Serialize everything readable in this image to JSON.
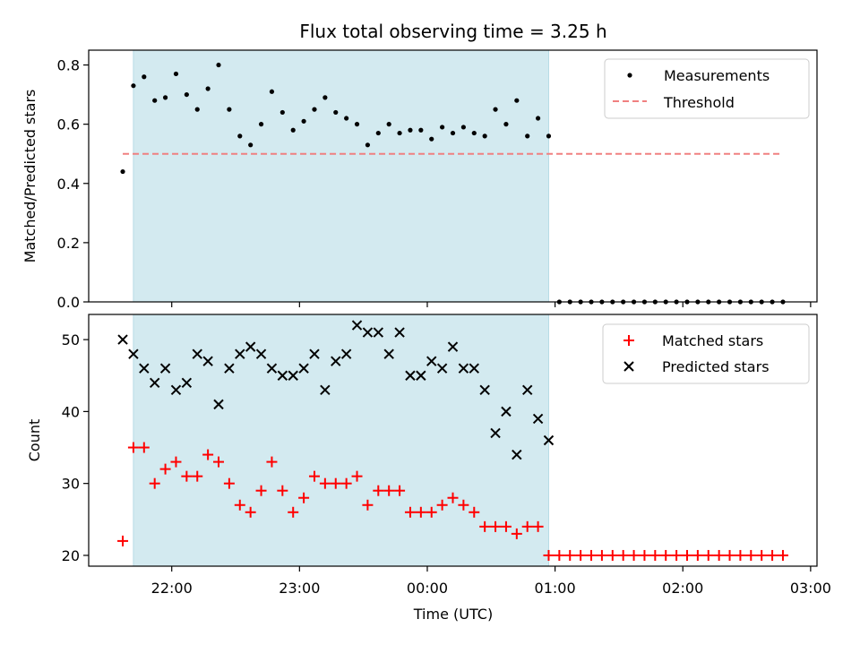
{
  "chart_data": {
    "title": "Flux total observing time = 3.25 h",
    "xlabel": "Time (UTC)",
    "x_ticks": [
      "22:00",
      "23:00",
      "00:00",
      "01:00",
      "02:00",
      "03:00"
    ],
    "x_tick_minutes": [
      0,
      60,
      120,
      180,
      240,
      300
    ],
    "xlim_minutes": [
      -39,
      303
    ],
    "observing_window_minutes": [
      -18,
      177
    ],
    "colors": {
      "window": "#d3eaf0",
      "measurements": "#000000",
      "threshold": "#f08080",
      "matched": "#ff0000",
      "predicted": "#000000"
    },
    "top": {
      "type": "scatter",
      "ylabel": "Matched/Predicted stars",
      "ylim": [
        0,
        0.85
      ],
      "y_ticks": [
        "0.0",
        "0.2",
        "0.4",
        "0.6",
        "0.8"
      ],
      "y_tick_values": [
        0,
        0.2,
        0.4,
        0.6,
        0.8
      ],
      "legend": [
        "Measurements",
        "Threshold"
      ],
      "threshold": {
        "value": 0.5,
        "x_range_minutes": [
          -23,
          287
        ]
      },
      "measurements": {
        "x_minutes": [
          -23,
          -18,
          -13,
          -8,
          -3,
          2,
          7,
          12,
          17,
          22,
          27,
          32,
          37,
          42,
          47,
          52,
          57,
          62,
          67,
          72,
          77,
          82,
          87,
          92,
          97,
          102,
          107,
          112,
          117,
          122,
          127,
          132,
          137,
          142,
          147,
          152,
          157,
          162,
          167,
          172,
          177,
          182,
          187,
          192,
          197,
          202,
          207,
          212,
          217,
          222,
          227,
          232,
          237,
          242,
          247,
          252,
          257,
          262,
          267,
          272,
          277,
          282,
          287
        ],
        "y": [
          0.44,
          0.73,
          0.76,
          0.68,
          0.69,
          0.77,
          0.7,
          0.65,
          0.72,
          0.8,
          0.65,
          0.56,
          0.53,
          0.6,
          0.71,
          0.64,
          0.58,
          0.61,
          0.65,
          0.69,
          0.64,
          0.62,
          0.6,
          0.53,
          0.57,
          0.6,
          0.57,
          0.58,
          0.58,
          0.55,
          0.59,
          0.57,
          0.59,
          0.57,
          0.56,
          0.65,
          0.6,
          0.68,
          0.56,
          0.62,
          0.56,
          0,
          0,
          0,
          0,
          0,
          0,
          0,
          0,
          0,
          0,
          0,
          0,
          0,
          0,
          0,
          0,
          0,
          0,
          0,
          0,
          0,
          0
        ]
      }
    },
    "bottom": {
      "type": "scatter",
      "ylabel": "Count",
      "ylim": [
        18.5,
        53.5
      ],
      "y_ticks": [
        "20",
        "30",
        "40",
        "50"
      ],
      "y_tick_values": [
        20,
        30,
        40,
        50
      ],
      "legend": [
        "Matched stars",
        "Predicted stars"
      ],
      "matched": {
        "x_minutes": [
          -23,
          -18,
          -13,
          -8,
          -3,
          2,
          7,
          12,
          17,
          22,
          27,
          32,
          37,
          42,
          47,
          52,
          57,
          62,
          67,
          72,
          77,
          82,
          87,
          92,
          97,
          102,
          107,
          112,
          117,
          122,
          127,
          132,
          137,
          142,
          147,
          152,
          157,
          162,
          167,
          172,
          177,
          182,
          187,
          192,
          197,
          202,
          207,
          212,
          217,
          222,
          227,
          232,
          237,
          242,
          247,
          252,
          257,
          262,
          267,
          272,
          277,
          282,
          287
        ],
        "y": [
          22,
          35,
          35,
          30,
          32,
          33,
          31,
          31,
          34,
          33,
          30,
          27,
          26,
          29,
          33,
          29,
          26,
          28,
          31,
          30,
          30,
          30,
          31,
          27,
          29,
          29,
          29,
          26,
          26,
          26,
          27,
          28,
          27,
          26,
          24,
          24,
          24,
          23,
          24,
          24,
          20,
          20,
          20,
          20,
          20,
          20,
          20,
          20,
          20,
          20,
          20,
          20,
          20,
          20,
          20,
          20,
          20,
          20,
          20,
          20,
          20,
          20,
          20
        ]
      },
      "predicted": {
        "x_minutes": [
          -23,
          -18,
          -13,
          -8,
          -3,
          2,
          7,
          12,
          17,
          22,
          27,
          32,
          37,
          42,
          47,
          52,
          57,
          62,
          67,
          72,
          77,
          82,
          87,
          92,
          97,
          102,
          107,
          112,
          117,
          122,
          127,
          132,
          137,
          142,
          147,
          152,
          157,
          162,
          167,
          172,
          177
        ],
        "y": [
          50,
          48,
          46,
          44,
          46,
          43,
          44,
          48,
          47,
          41,
          46,
          48,
          49,
          48,
          46,
          45,
          45,
          46,
          48,
          43,
          47,
          48,
          52,
          51,
          51,
          48,
          51,
          45,
          45,
          47,
          46,
          49,
          46,
          46,
          43,
          37,
          40,
          34,
          43,
          39,
          36
        ]
      }
    }
  }
}
